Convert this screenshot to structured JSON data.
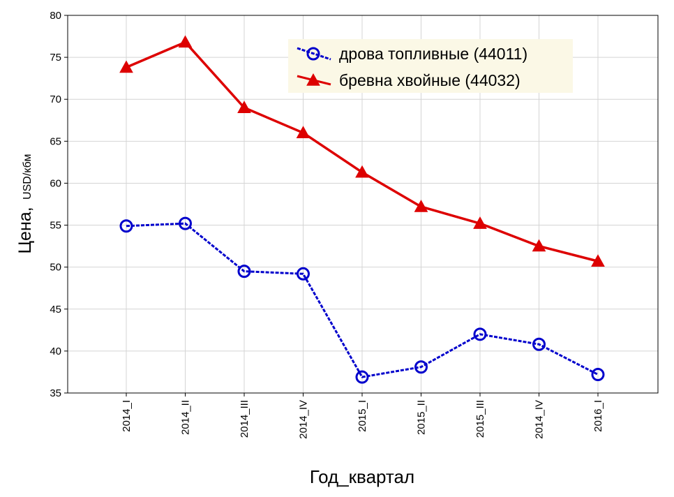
{
  "chart_data": {
    "type": "line",
    "x_categories": [
      "2014_I",
      "2014_II",
      "2014_III",
      "2014_IV",
      "2015_I",
      "2015_II",
      "2015_III",
      "2014_IV",
      "2016_I"
    ],
    "xlabel": "Год_квартал",
    "ylabel": {
      "main": "Цена,",
      "unit": "USD/кбм"
    },
    "ylim": [
      35,
      80
    ],
    "yticks": [
      35,
      40,
      45,
      50,
      55,
      60,
      65,
      70,
      75,
      80
    ],
    "grid": true,
    "legend_position": "top-right",
    "series": [
      {
        "name": "дрова топливные (44011)",
        "color": "#0000cc",
        "marker": "circle",
        "line_style": "dashed",
        "values": [
          54.9,
          55.2,
          49.5,
          49.2,
          36.9,
          38.1,
          42.0,
          40.8,
          37.2
        ]
      },
      {
        "name": "бревна хвойные (44032)",
        "color": "#dd0000",
        "marker": "triangle",
        "line_style": "solid",
        "values": [
          73.8,
          76.8,
          69.0,
          66.0,
          61.3,
          57.2,
          55.2,
          52.5,
          50.7
        ]
      }
    ]
  }
}
